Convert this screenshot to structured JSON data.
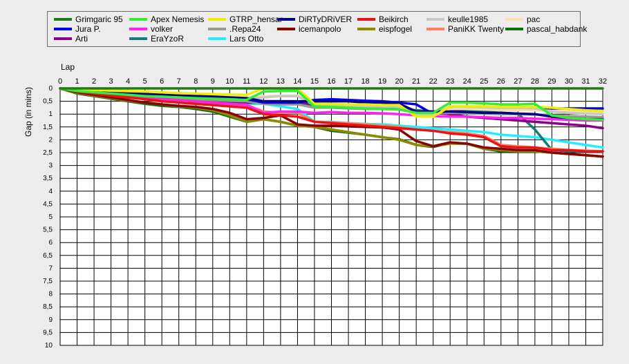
{
  "chart_data": {
    "type": "line",
    "xlabel": "Lap",
    "ylabel": "Gap (in mins)",
    "xlim": [
      0,
      32
    ],
    "ylim": [
      0,
      10
    ],
    "y_inverted": true,
    "grid": true,
    "x_ticks": [
      "0",
      "1",
      "2",
      "3",
      "4",
      "5",
      "6",
      "7",
      "8",
      "9",
      "10",
      "11",
      "12",
      "13",
      "14",
      "15",
      "16",
      "17",
      "18",
      "19",
      "20",
      "21",
      "22",
      "23",
      "24",
      "25",
      "26",
      "27",
      "28",
      "29",
      "30",
      "31",
      "32"
    ],
    "y_ticks": [
      "0",
      "0,5",
      "1",
      "1,5",
      "2",
      "2,5",
      "3",
      "3,5",
      "4",
      "4,5",
      "5",
      "5,5",
      "6",
      "6,5",
      "7",
      "7,5",
      "8",
      "8,5",
      "9",
      "9,5",
      "10"
    ],
    "legend_position": "top",
    "series": [
      {
        "name": "Grimgaric 95",
        "color": "#1e7a12",
        "values": [
          0,
          0,
          0,
          0,
          0,
          0,
          0,
          0,
          0,
          0,
          0,
          0,
          0,
          0,
          0,
          0,
          0,
          0,
          0,
          0,
          0,
          0,
          0,
          0,
          0,
          0,
          0,
          0,
          0,
          0,
          0,
          0,
          0
        ]
      },
      {
        "name": "Apex Nemesis",
        "color": "#33ee33",
        "values": [
          0,
          0.1,
          0.15,
          0.2,
          0.25,
          0.3,
          0.32,
          0.35,
          0.38,
          0.4,
          0.42,
          0.45,
          0.12,
          0.1,
          0.1,
          0.7,
          0.72,
          0.75,
          0.78,
          0.8,
          0.82,
          0.95,
          0.95,
          0.55,
          0.55,
          0.58,
          0.62,
          0.62,
          0.6,
          1.05,
          1.15,
          1.2,
          1.22
        ]
      },
      {
        "name": "GTRP_hensar",
        "color": "#f0ee00",
        "values": [
          0,
          0.04,
          0.06,
          0.08,
          0.1,
          0.12,
          0.15,
          0.18,
          0.2,
          0.22,
          0.24,
          0.25,
          0,
          0,
          0,
          0.6,
          0.6,
          0.62,
          0.62,
          0.65,
          0.65,
          1.1,
          1.1,
          0.7,
          0.7,
          0.7,
          0.72,
          0.72,
          0.72,
          0.75,
          0.8,
          0.85,
          0.88
        ]
      },
      {
        "name": "DiRTyDRiVER",
        "color": "#00008b",
        "values": [
          0,
          0.1,
          0.15,
          0.18,
          0.2,
          0.22,
          0.25,
          0.28,
          0.3,
          0.32,
          0.35,
          0.38,
          0.5,
          0.5,
          0.5,
          0.5,
          0.5,
          0.5,
          0.55,
          0.55,
          0.6,
          0.9,
          0.9,
          0.9,
          0.92,
          0.95,
          0.95,
          0.98,
          1.0,
          1.1,
          1.15,
          1.2,
          1.2
        ]
      },
      {
        "name": "Beikirch",
        "color": "#e81414",
        "values": [
          0,
          0.12,
          0.2,
          0.28,
          0.35,
          0.42,
          0.5,
          0.55,
          0.6,
          0.65,
          0.7,
          0.75,
          1.0,
          1.05,
          1.1,
          1.3,
          1.35,
          1.4,
          1.45,
          1.5,
          1.55,
          1.6,
          1.65,
          1.75,
          1.8,
          1.9,
          2.25,
          2.3,
          2.3,
          2.4,
          2.4,
          2.45,
          2.45
        ]
      },
      {
        "name": "keulle1985",
        "color": "#c8c8c8",
        "values": [
          0,
          0.06,
          0.1,
          0.14,
          0.18,
          0.22,
          0.26,
          0.3,
          0.32,
          0.35,
          0.38,
          0.4,
          0.35,
          0.3,
          0.3,
          0.65,
          0.66,
          0.68,
          0.7,
          0.7,
          0.72,
          1.0,
          1.0,
          0.72,
          0.72,
          0.74,
          0.76,
          0.76,
          0.78,
          0.9,
          0.95,
          0.98,
          1.0
        ]
      },
      {
        "name": "pac",
        "color": "#f5e3b0",
        "values": [
          0,
          0.05,
          0.08,
          0.12,
          0.15,
          0.18,
          0.22,
          0.25,
          0.28,
          0.3,
          0.33,
          0.35,
          0.3,
          0.28,
          0.28,
          0.62,
          0.63,
          0.65,
          0.68,
          0.7,
          0.7,
          1.05,
          1.05,
          0.8,
          0.8,
          0.82,
          0.85,
          0.85,
          0.85,
          0.88,
          0.9,
          0.92,
          0.95
        ]
      },
      {
        "name": "Jura P.",
        "color": "#0000ee",
        "values": [
          0,
          0.08,
          0.12,
          0.16,
          0.2,
          0.24,
          0.28,
          0.32,
          0.35,
          0.38,
          0.4,
          0.42,
          0.55,
          0.55,
          0.55,
          0.45,
          0.42,
          0.45,
          0.48,
          0.5,
          0.55,
          0.62,
          1.0,
          0.85,
          0.8,
          0.78,
          0.76,
          0.75,
          0.75,
          0.78,
          0.78,
          0.78,
          0.78
        ]
      },
      {
        "name": "volker",
        "color": "#ff22ee",
        "values": [
          0,
          0.1,
          0.16,
          0.22,
          0.28,
          0.34,
          0.4,
          0.45,
          0.5,
          0.55,
          0.6,
          0.65,
          0.95,
          0.9,
          0.9,
          0.95,
          0.92,
          0.95,
          0.95,
          0.97,
          1.0,
          1.05,
          1.08,
          1.1,
          1.1,
          1.12,
          1.15,
          1.15,
          1.18,
          1.2,
          1.22,
          1.25,
          1.25
        ]
      },
      {
        "name": ".Repa24",
        "color": "#9a9a8a",
        "values": [
          0,
          0.08,
          0.14,
          0.2,
          0.25,
          0.3,
          0.35,
          0.4,
          0.42,
          0.45,
          0.48,
          0.5,
          0.6,
          0.62,
          0.62,
          0.75,
          0.75,
          0.78,
          0.8,
          0.8,
          0.82,
          0.95,
          0.95,
          0.95,
          0.96,
          0.98,
          1.0,
          1.0,
          1.02,
          1.05,
          1.08,
          1.1,
          1.12
        ]
      },
      {
        "name": "icemanpolo",
        "color": "#8b0000",
        "values": [
          0,
          0.15,
          0.25,
          0.35,
          0.45,
          0.55,
          0.62,
          0.68,
          0.72,
          0.8,
          0.95,
          1.2,
          1.15,
          1.05,
          1.4,
          1.45,
          1.45,
          1.48,
          1.5,
          1.52,
          1.6,
          2.05,
          2.25,
          2.1,
          2.15,
          2.3,
          2.35,
          2.4,
          2.4,
          2.5,
          2.55,
          2.6,
          2.65
        ]
      },
      {
        "name": "eispfogel",
        "color": "#8b8b00",
        "values": [
          0,
          0.18,
          0.28,
          0.38,
          0.48,
          0.55,
          0.62,
          0.7,
          0.75,
          0.85,
          1.05,
          1.3,
          1.2,
          1.3,
          1.45,
          1.5,
          1.6,
          1.7,
          1.8,
          1.9,
          2.0,
          2.2,
          2.25,
          2.15,
          2.15,
          2.35,
          2.4,
          2.45,
          2.45,
          2.5,
          2.55,
          2.6,
          2.65
        ]
      },
      {
        "name": "PaniKK Twenty",
        "color": "#ff8060",
        "values": [
          0,
          0.12,
          0.18,
          0.25,
          0.3,
          0.35,
          0.42,
          0.48,
          0.52,
          0.56,
          0.6,
          0.64,
          0.9,
          0.95,
          0.95,
          1.3,
          1.32,
          1.35,
          1.4,
          1.45,
          1.5,
          1.6,
          1.65,
          1.7,
          1.75,
          1.85,
          2.2,
          2.25,
          2.3,
          2.35,
          2.4,
          2.42,
          2.45
        ]
      },
      {
        "name": "pascal_habdank",
        "color": "#0d700d",
        "values": [
          0,
          0.2,
          0.3,
          0.4,
          0.5,
          0.6,
          0.68,
          0.72,
          0.8,
          0.9,
          1.1,
          1.3,
          1.2,
          1.3,
          1.45,
          1.5,
          1.65,
          1.72,
          1.8,
          1.9,
          1.98,
          2.2,
          2.28,
          2.12,
          2.15,
          2.35,
          2.45,
          2.45,
          2.45,
          2.5,
          2.55,
          2.6,
          2.65
        ]
      },
      {
        "name": "Arti",
        "color": "#8b008b",
        "values": [
          0,
          0.1,
          0.15,
          0.2,
          0.25,
          0.3,
          0.34,
          0.38,
          0.42,
          0.46,
          0.5,
          0.55,
          0.5,
          0.5,
          0.55,
          0.6,
          0.62,
          0.65,
          0.68,
          0.7,
          0.72,
          0.9,
          0.95,
          1.0,
          1.1,
          1.15,
          1.2,
          1.25,
          1.3,
          1.35,
          1.4,
          1.45,
          1.55
        ]
      },
      {
        "name": "EraYzoR",
        "color": "#127878",
        "values": [
          0,
          0.08,
          0.14,
          0.2,
          0.26,
          0.32,
          0.36,
          0.4,
          0.44,
          0.48,
          0.52,
          0.56,
          0.55,
          0.55,
          0.6,
          0.7,
          0.7,
          0.72,
          0.75,
          0.78,
          0.8,
          0.85,
          0.9,
          0.85,
          0.88,
          0.9,
          0.95,
          0.98,
          1.6,
          2.4,
          2.45,
          2.45,
          2.45
        ]
      },
      {
        "name": "Lars Otto",
        "color": "#22eeff",
        "values": [
          0,
          0.06,
          0.12,
          0.18,
          0.24,
          0.3,
          0.35,
          0.4,
          0.45,
          0.5,
          0.55,
          0.6,
          0.6,
          0.7,
          0.8,
          1.3,
          1.3,
          1.35,
          1.38,
          1.4,
          1.45,
          1.5,
          1.55,
          1.6,
          1.65,
          1.7,
          1.8,
          1.85,
          1.9,
          2.0,
          2.1,
          2.2,
          2.3
        ]
      }
    ]
  }
}
